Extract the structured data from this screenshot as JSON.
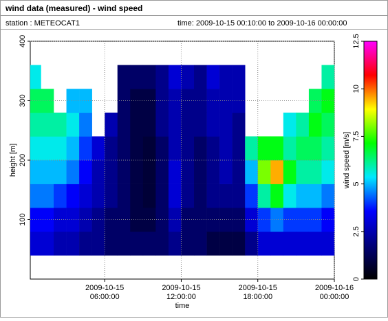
{
  "header": {
    "title": "wind data (measured) - wind speed",
    "station": "station : METEOCAT1",
    "time": "time: 2009-10-15 00:10:00 to 2009-10-16 00:00:00"
  },
  "chart_data": {
    "type": "heatmap",
    "xlabel": "time",
    "ylabel": "height [m]",
    "colorbar_label": "wind speed [m/s]",
    "xlim": [
      "2009-10-15 00:10:00",
      "2009-10-16 00:00:00"
    ],
    "xticks": [
      {
        "value": "2009-10-15 06:00:00",
        "label": [
          "2009-10-15",
          "06:00:00"
        ]
      },
      {
        "value": "2009-10-15 12:00:00",
        "label": [
          "2009-10-15",
          "12:00:00"
        ]
      },
      {
        "value": "2009-10-15 18:00:00",
        "label": [
          "2009-10-15",
          "18:00:00"
        ]
      },
      {
        "value": "2009-10-16 00:00:00",
        "label": [
          "2009-10-16",
          "00:00:00"
        ]
      }
    ],
    "ylim": [
      0,
      400
    ],
    "yticks": [
      100,
      200,
      300,
      400
    ],
    "clim": [
      0,
      12.5
    ],
    "cticks": [
      0,
      2.5,
      5,
      7.5,
      10,
      12.5
    ],
    "colormap": [
      "#000000",
      "#00007a",
      "#0000ff",
      "#00e8ff",
      "#00ff00",
      "#ffff00",
      "#ff0000",
      "#ff00ff"
    ],
    "grid": true,
    "x": [
      "2009-10-15 00:10:00",
      "2009-10-15 01:00:00",
      "2009-10-15 02:00:00",
      "2009-10-15 03:00:00",
      "2009-10-15 04:00:00",
      "2009-10-15 05:00:00",
      "2009-10-15 06:00:00",
      "2009-10-15 07:00:00",
      "2009-10-15 08:00:00",
      "2009-10-15 09:00:00",
      "2009-10-15 10:00:00",
      "2009-10-15 11:00:00",
      "2009-10-15 12:00:00",
      "2009-10-15 13:00:00",
      "2009-10-15 14:00:00",
      "2009-10-15 15:00:00",
      "2009-10-15 16:00:00",
      "2009-10-15 17:00:00",
      "2009-10-15 18:00:00",
      "2009-10-15 19:00:00",
      "2009-10-15 20:00:00",
      "2009-10-15 21:00:00",
      "2009-10-15 22:00:00",
      "2009-10-15 23:00:00"
    ],
    "ybins": [
      40,
      80,
      120,
      160,
      200,
      240,
      280,
      320,
      360
    ],
    "z": [
      [
        3,
        3.5,
        4.5,
        5,
        5.5,
        6,
        6.5,
        5.5
      ],
      [
        3,
        3.5,
        4.5,
        5,
        5.5,
        6,
        6.5,
        null
      ],
      [
        2.5,
        3,
        4,
        5,
        5.5,
        6,
        null,
        null
      ],
      [
        2.5,
        3,
        3.5,
        4.5,
        5,
        5.5,
        5,
        null
      ],
      [
        2,
        2.5,
        3,
        3.5,
        4,
        4.5,
        5,
        null
      ],
      [
        2,
        2,
        2.5,
        2.5,
        3,
        null,
        null,
        null
      ],
      [
        1.5,
        1.5,
        2,
        2,
        2,
        2.5,
        null,
        null
      ],
      [
        1.5,
        1.5,
        1.5,
        1.5,
        1.5,
        1.5,
        1.5,
        1.5
      ],
      [
        1.5,
        1,
        1,
        1,
        1,
        1,
        1,
        1.5
      ],
      [
        1.5,
        1,
        0.8,
        0.8,
        0.8,
        1,
        1,
        1.5
      ],
      [
        1.5,
        1.5,
        1.5,
        1.5,
        1.5,
        2,
        2,
        2
      ],
      [
        2,
        2.5,
        3,
        3,
        2.5,
        2.5,
        2.5,
        3
      ],
      [
        1.5,
        1.5,
        2,
        2,
        2,
        2,
        2,
        2.5
      ],
      [
        1.5,
        1.5,
        1.5,
        1.5,
        1.5,
        2,
        2,
        2
      ],
      [
        1,
        1.5,
        2,
        2,
        2,
        2.5,
        2.5,
        3
      ],
      [
        1,
        1.5,
        2,
        2.5,
        2.5,
        2.5,
        2.5,
        2.5
      ],
      [
        1,
        1.5,
        2,
        2,
        2,
        2,
        2.5,
        2.5
      ],
      [
        2,
        3,
        4,
        5,
        6,
        null,
        null,
        null
      ],
      [
        3,
        4,
        6,
        8,
        7,
        null,
        null,
        null
      ],
      [
        3,
        4.5,
        7,
        9.5,
        7,
        null,
        null,
        null
      ],
      [
        3,
        4,
        5.5,
        7,
        6,
        5.5,
        null,
        null
      ],
      [
        3,
        4,
        5,
        6,
        6.5,
        6,
        null,
        null
      ],
      [
        3,
        4,
        5,
        6,
        6.5,
        7,
        6.5,
        null
      ],
      [
        3,
        3.5,
        4.5,
        5.5,
        6,
        6.5,
        7,
        6
      ]
    ]
  }
}
